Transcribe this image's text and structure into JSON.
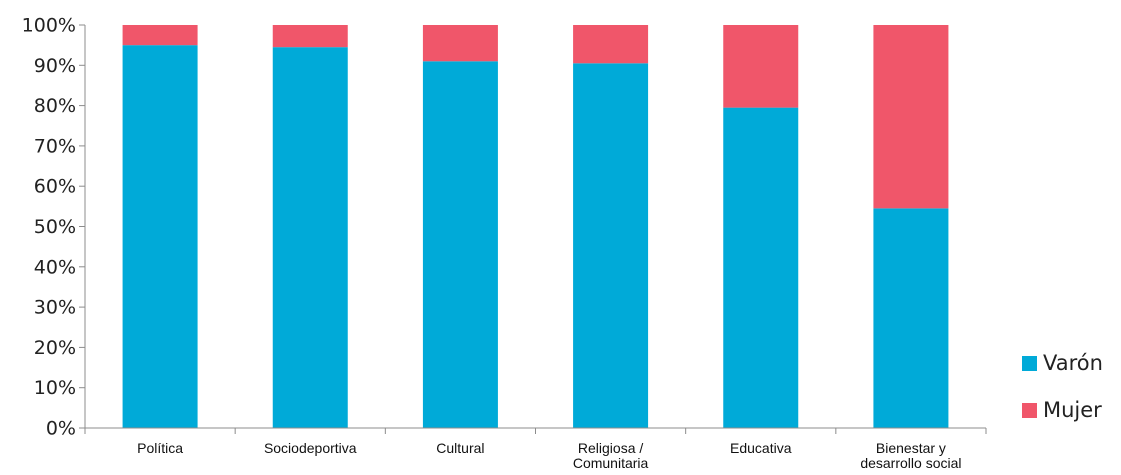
{
  "chart_data": {
    "type": "bar",
    "stacked": true,
    "categories": [
      [
        "Política"
      ],
      [
        "Sociodeportiva"
      ],
      [
        "Cultural"
      ],
      [
        "Religiosa /",
        "Comunitaria"
      ],
      [
        "Educativa"
      ],
      [
        "Bienestar y",
        "desarrollo social"
      ]
    ],
    "series": [
      {
        "name": "Varón",
        "color": "#00aad8",
        "values": [
          95,
          94.5,
          91,
          90.5,
          79.5,
          54.5
        ]
      },
      {
        "name": "Mujer",
        "color": "#f0566a",
        "values": [
          5,
          5.5,
          9,
          9.5,
          20.5,
          45.5
        ]
      }
    ],
    "yticks": [
      "0%",
      "10%",
      "20%",
      "30%",
      "40%",
      "50%",
      "60%",
      "70%",
      "80%",
      "90%",
      "100%"
    ],
    "ylim": [
      0,
      100
    ],
    "grid": false,
    "legend_position": "bottom-right",
    "title": "",
    "xlabel": "",
    "ylabel": ""
  }
}
